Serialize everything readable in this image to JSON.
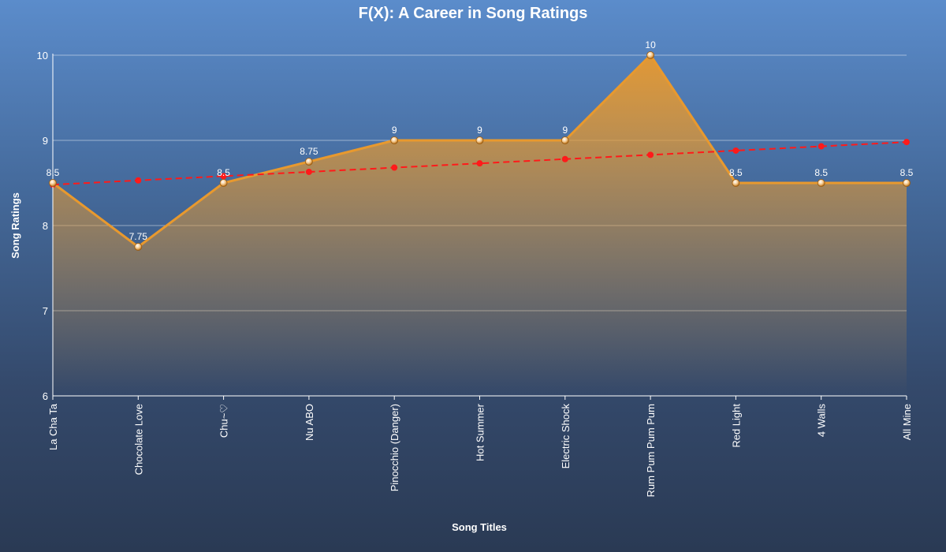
{
  "chart_data": {
    "type": "area",
    "title": "F(X): A Career in Song Ratings",
    "xlabel": "Song Titles",
    "ylabel": "Song Ratings",
    "categories": [
      "La Cha Ta",
      "Chocolate Love",
      "Chu~♡",
      "Nu ABO",
      "Pinocchio (Danger)",
      "Hot Summer",
      "Electric Shock",
      "Rum Pum Pum Pum",
      "Red Light",
      "4 Walls",
      "All Mine"
    ],
    "series": [
      {
        "values": [
          8.5,
          7.75,
          8.5,
          8.75,
          9,
          9,
          9,
          10,
          8.5,
          8.5,
          8.5
        ],
        "color": "#e8992e",
        "data_labels": true
      },
      {
        "values": [
          8.48,
          8.53,
          8.58,
          8.63,
          8.68,
          8.73,
          8.78,
          8.83,
          8.88,
          8.93,
          8.98
        ],
        "color": "#ff1a1a",
        "style": "dashed"
      }
    ],
    "yticks": [
      6,
      7,
      8,
      9,
      10
    ],
    "ylim": [
      6,
      10
    ],
    "grid": true,
    "legend": "none"
  }
}
